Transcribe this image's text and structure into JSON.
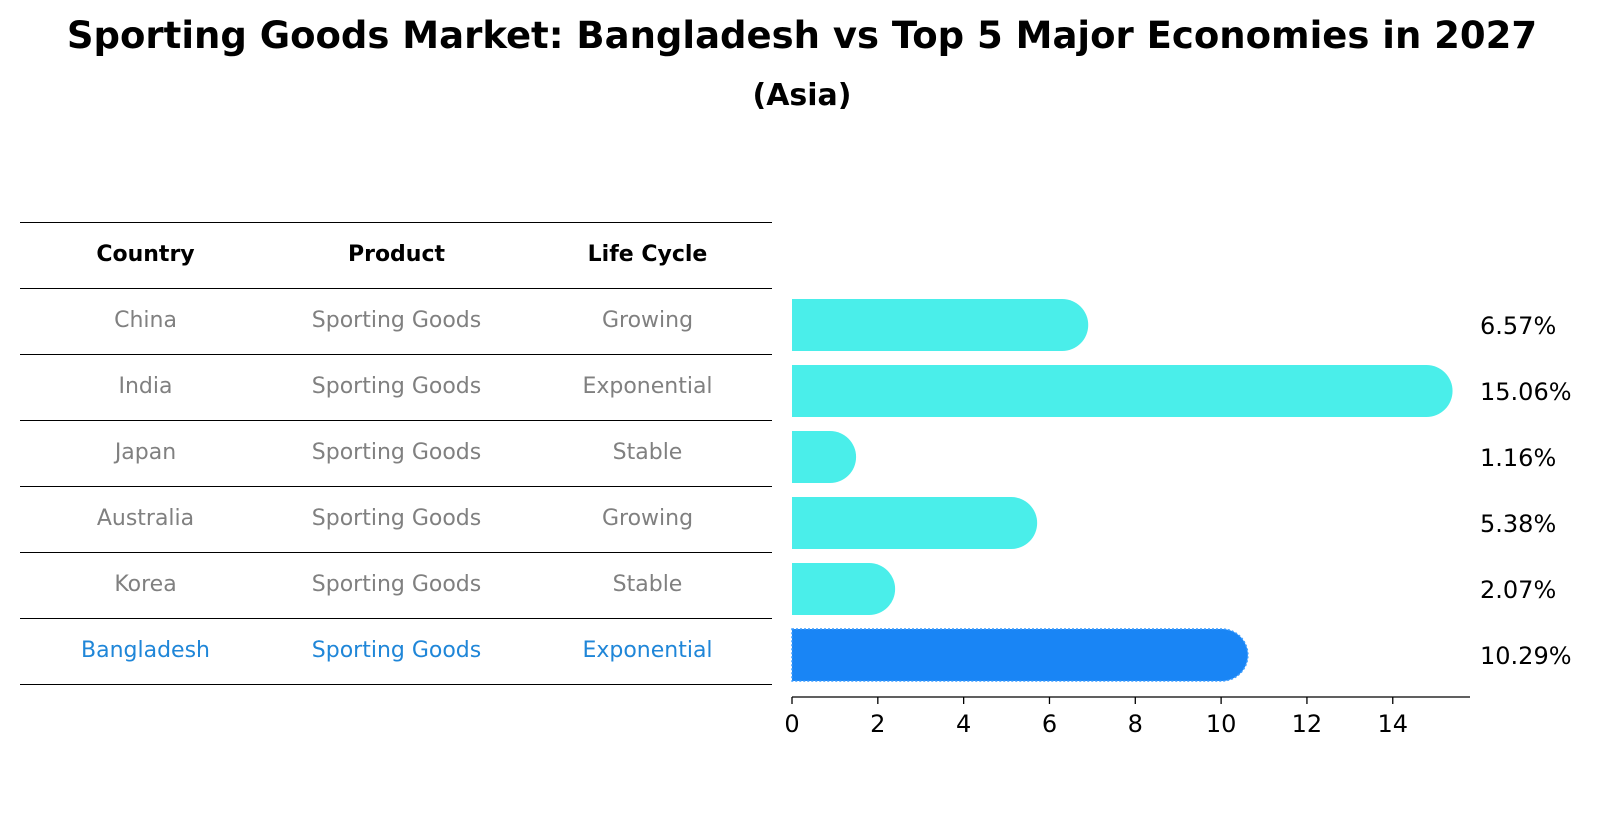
{
  "title": "Sporting Goods Market: Bangladesh vs Top 5 Major Economies in 2027",
  "subtitle": "(Asia)",
  "table": {
    "headers": [
      "Country",
      "Product",
      "Life Cycle"
    ],
    "rows": [
      [
        "China",
        "Sporting Goods",
        "Growing"
      ],
      [
        "India",
        "Sporting Goods",
        "Exponential"
      ],
      [
        "Japan",
        "Sporting Goods",
        "Stable"
      ],
      [
        "Australia",
        "Sporting Goods",
        "Growing"
      ],
      [
        "Korea",
        "Sporting Goods",
        "Stable"
      ],
      [
        "Bangladesh",
        "Sporting Goods",
        "Exponential"
      ]
    ],
    "highlight_row": 5
  },
  "chart_data": {
    "type": "bar",
    "orientation": "horizontal",
    "categories": [
      "China",
      "India",
      "Japan",
      "Australia",
      "Korea",
      "Bangladesh"
    ],
    "values": [
      6.57,
      15.06,
      1.16,
      5.38,
      2.07,
      10.29
    ],
    "value_labels": [
      "6.57%",
      "15.06%",
      "1.16%",
      "5.38%",
      "2.07%",
      "10.29%"
    ],
    "xlim": [
      0,
      15.8
    ],
    "xticks": [
      0,
      2,
      4,
      6,
      8,
      10,
      12,
      14
    ],
    "highlight": "Bangladesh",
    "colors": {
      "default": "#4aeeea",
      "highlight": "#1985f5"
    }
  }
}
